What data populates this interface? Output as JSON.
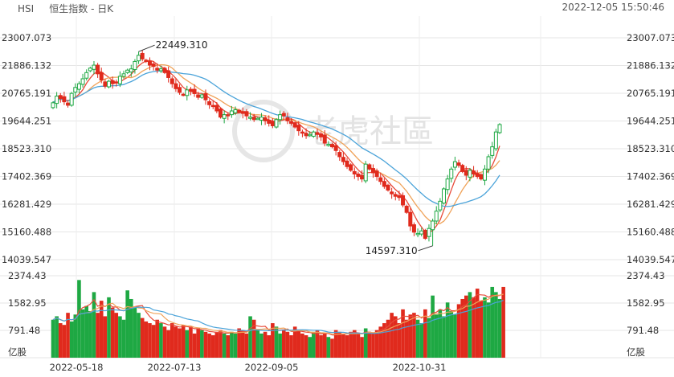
{
  "header": {
    "symbol": "HSI",
    "title": "恒生指数 - 日K",
    "datetime": "2022-12-05 15:50:46"
  },
  "watermark": "老虎社區",
  "colors": {
    "up": "#1ea843",
    "down": "#e02a1d",
    "ma_fast": "#e84b3a",
    "ma_mid": "#f0a35a",
    "ma_slow": "#4aa3d9",
    "grid": "#e6e6e6"
  },
  "chart_data": {
    "type": "candlestick",
    "price_axis": {
      "ticks": [
        23007.073,
        21886.132,
        20765.191,
        19644.251,
        18523.31,
        17402.369,
        16281.429,
        15160.488,
        14039.547
      ],
      "labels": [
        "23007.073",
        "21886.132",
        "20765.191",
        "19644.251",
        "18523.310",
        "17402.369",
        "16281.429",
        "15160.488",
        "14039.547"
      ],
      "ylim": [
        14039.547,
        23007.073
      ]
    },
    "volume_axis": {
      "ticks": [
        2374.43,
        1582.95,
        791.48
      ],
      "labels": [
        "2374.43",
        "1582.95",
        "791.48"
      ],
      "unit": "亿股",
      "ylim": [
        0,
        2374.43
      ]
    },
    "date_labels": [
      "2022-05-18",
      "2022-07-13",
      "2022-09-05",
      "2022-10-31"
    ],
    "annotations": [
      {
        "text": "22449.310",
        "type": "high",
        "value": 22449.31
      },
      {
        "text": "14597.310",
        "type": "low",
        "value": 14597.31
      }
    ],
    "close_path": [
      20380,
      20650,
      20550,
      20420,
      20280,
      20760,
      21000,
      21150,
      21350,
      21600,
      21780,
      21900,
      21550,
      21300,
      21050,
      21250,
      21150,
      21200,
      21450,
      21550,
      21700,
      21750,
      22050,
      22300,
      22150,
      22050,
      21900,
      21850,
      21700,
      21750,
      21600,
      21400,
      21150,
      20950,
      20800,
      20700,
      20900,
      20850,
      20750,
      20600,
      20700,
      20500,
      20300,
      20250,
      20050,
      19800,
      19900,
      19850,
      20050,
      20100,
      20000,
      19950,
      19850,
      19800,
      19700,
      19750,
      19800,
      19650,
      19550,
      19450,
      19700,
      19900,
      19850,
      19650,
      19550,
      19400,
      19250,
      19150,
      19050,
      19100,
      19200,
      19100,
      19000,
      18750,
      18700,
      18600,
      18450,
      18200,
      18000,
      17800,
      17650,
      17500,
      17400,
      17300,
      17900,
      17700,
      17550,
      17400,
      17200,
      17000,
      16850,
      16700,
      16600,
      16550,
      16250,
      15950,
      15400,
      15150,
      15100,
      15200,
      14900,
      15300,
      15600,
      16000,
      16400,
      16900,
      17300,
      17700,
      18000,
      17850,
      17600,
      17450,
      17650,
      17500,
      17400,
      17300,
      17700,
      18200,
      18600,
      19200,
      19500
    ],
    "volume_path": [
      1100,
      1200,
      1000,
      950,
      1300,
      1050,
      1250,
      2250,
      1400,
      1500,
      1350,
      1900,
      1300,
      1650,
      1200,
      1750,
      1450,
      1300,
      1200,
      1100,
      1950,
      1700,
      1450,
      1300,
      1150,
      1050,
      1000,
      950,
      1100,
      1000,
      900,
      800,
      1000,
      900,
      850,
      950,
      800,
      900,
      700,
      850,
      800,
      750,
      700,
      650,
      750,
      800,
      700,
      650,
      750,
      700,
      850,
      800,
      700,
      1200,
      1100,
      800,
      700,
      750,
      650,
      1000,
      900,
      700,
      800,
      750,
      650,
      900,
      800,
      700,
      650,
      600,
      750,
      800,
      650,
      700,
      600,
      550,
      800,
      750,
      700,
      650,
      750,
      800,
      700,
      600,
      850,
      750,
      700,
      800,
      900,
      1000,
      1100,
      1300,
      1200,
      1000,
      1400,
      1100,
      1250,
      1300,
      1100,
      1000,
      1400,
      1150,
      1800,
      1250,
      1400,
      1200,
      1600,
      1350,
      1250,
      1550,
      1700,
      1800,
      1900,
      1750,
      2000,
      1650,
      1750,
      1600,
      2050,
      1900,
      1700,
      2050
    ]
  }
}
